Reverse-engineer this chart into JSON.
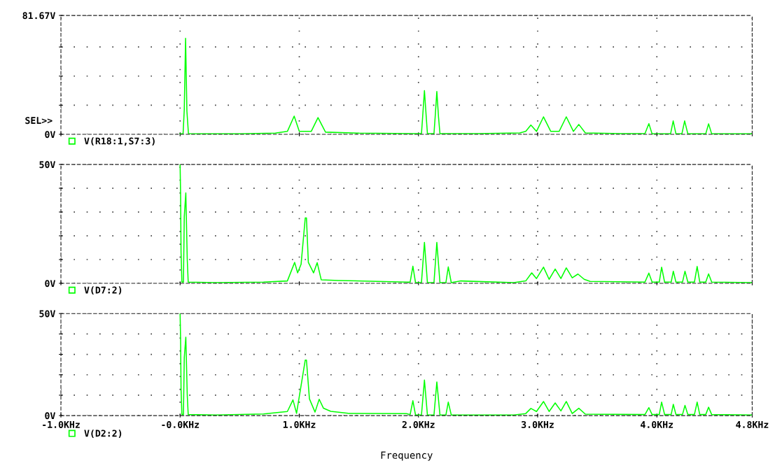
{
  "chart_data": [
    {
      "type": "line",
      "xlim": [
        -1.0,
        4.8
      ],
      "xticks": [
        {
          "value": -1.0,
          "label": null
        },
        {
          "value": 0,
          "label": null
        },
        {
          "value": 1.0,
          "label": null
        },
        {
          "value": 2.0,
          "label": null
        },
        {
          "value": 3.0,
          "label": null
        },
        {
          "value": 4.0,
          "label": null
        },
        {
          "value": 4.8,
          "label": null
        }
      ],
      "ylim": [
        0,
        81.67
      ],
      "yticks": [
        {
          "value": 0,
          "label": "0V"
        },
        {
          "value": 20,
          "label": null
        },
        {
          "value": 40,
          "label": null
        },
        {
          "value": 60,
          "label": null
        },
        {
          "value": 81.67,
          "label": "81.67V"
        }
      ],
      "tick_labels": "y",
      "grid": true,
      "legend": "bottom left",
      "line_style": "solid",
      "annotations": [
        "SEL>>"
      ],
      "series": [
        {
          "name": "V(R18:1,S7:3)",
          "color": "#00ff00",
          "x": [
            0,
            0.025,
            0.035,
            0.046,
            0.057,
            0.07,
            0.2,
            0.5,
            0.8,
            0.9,
            0.957,
            1.0,
            1.1,
            1.157,
            1.22,
            1.5,
            1.95,
            2.025,
            2.035,
            2.05,
            2.065,
            2.075,
            2.13,
            2.14,
            2.154,
            2.168,
            2.18,
            2.5,
            2.85,
            2.9,
            2.943,
            2.99,
            3.049,
            3.11,
            3.18,
            3.24,
            3.3,
            3.345,
            3.4,
            3.7,
            3.9,
            3.933,
            3.96,
            4.115,
            4.137,
            4.16,
            4.21,
            4.233,
            4.26,
            4.41,
            4.434,
            4.46,
            4.8
          ],
          "values": [
            0.3,
            0.5,
            17,
            66,
            16,
            0.5,
            0.4,
            0.4,
            0.8,
            2,
            12.5,
            2,
            2,
            11.5,
            1.5,
            0.8,
            0.5,
            0.5,
            12,
            30,
            12,
            0.5,
            0.5,
            12,
            29.4,
            12,
            0.5,
            0.5,
            1,
            2,
            6.4,
            2,
            12,
            2,
            2,
            12,
            2,
            6.8,
            1,
            0.5,
            0.5,
            7.3,
            0.3,
            0.3,
            9.2,
            0.3,
            0.3,
            9.2,
            0.3,
            0.3,
            7.2,
            0.3,
            0.3
          ]
        }
      ]
    },
    {
      "type": "line",
      "xlim": [
        -1.0,
        4.8
      ],
      "xticks": [
        {
          "value": -1.0,
          "label": null
        },
        {
          "value": 0,
          "label": null
        },
        {
          "value": 1.0,
          "label": null
        },
        {
          "value": 2.0,
          "label": null
        },
        {
          "value": 3.0,
          "label": null
        },
        {
          "value": 4.0,
          "label": null
        },
        {
          "value": 4.8,
          "label": null
        }
      ],
      "ylim": [
        0,
        50
      ],
      "yticks": [
        {
          "value": 0,
          "label": "0V"
        },
        {
          "value": 10,
          "label": null
        },
        {
          "value": 20,
          "label": null
        },
        {
          "value": 30,
          "label": null
        },
        {
          "value": 40,
          "label": null
        },
        {
          "value": 50,
          "label": "50V"
        }
      ],
      "tick_labels": "y",
      "grid": true,
      "legend": "bottom left",
      "line_style": "solid",
      "series": [
        {
          "name": "V(D7:2)",
          "color": "#00ff00",
          "x": [
            0,
            0.004,
            0.008,
            0.015,
            0.028,
            0.035,
            0.048,
            0.06,
            0.068,
            0.3,
            0.7,
            0.9,
            0.961,
            0.986,
            1.015,
            1.05,
            1.06,
            1.076,
            1.12,
            1.15,
            1.184,
            1.33,
            1.9,
            1.93,
            1.953,
            1.975,
            2.025,
            2.05,
            2.075,
            2.13,
            2.154,
            2.18,
            2.23,
            2.25,
            2.275,
            2.356,
            2.8,
            2.9,
            2.95,
            2.99,
            3.049,
            3.096,
            3.147,
            3.195,
            3.24,
            3.29,
            3.338,
            3.39,
            3.44,
            3.9,
            3.933,
            3.96,
            4.02,
            4.04,
            4.065,
            4.12,
            4.138,
            4.16,
            4.215,
            4.236,
            4.26,
            4.315,
            4.338,
            4.36,
            4.41,
            4.434,
            4.46,
            4.8
          ],
          "values": [
            50,
            37.5,
            13,
            0.5,
            0.5,
            28,
            38,
            10,
            0.5,
            0.3,
            0.5,
            1,
            8.8,
            4.4,
            8,
            27.5,
            27.5,
            8.8,
            4.4,
            8.7,
            1.5,
            1.2,
            0.5,
            0.5,
            7.2,
            0.3,
            0.3,
            17.2,
            0.3,
            0.3,
            17.2,
            0.3,
            0.3,
            6.9,
            0.3,
            1,
            0.3,
            1,
            4.4,
            2,
            6.8,
            1.7,
            6,
            2,
            6.5,
            2.3,
            3.9,
            1.7,
            0.8,
            0.5,
            4.3,
            0.5,
            0.5,
            6.8,
            0.5,
            0.5,
            5.1,
            0.5,
            0.5,
            5.1,
            0.5,
            0.5,
            7.1,
            0.5,
            0.5,
            4,
            0.5,
            0.3
          ]
        }
      ]
    },
    {
      "type": "line",
      "xlim": [
        -1.0,
        4.8
      ],
      "xticks": [
        {
          "value": -1.0,
          "label": "-1.0KHz"
        },
        {
          "value": 0,
          "label": "-0.0KHz"
        },
        {
          "value": 1.0,
          "label": "1.0KHz"
        },
        {
          "value": 2.0,
          "label": "2.0KHz"
        },
        {
          "value": 3.0,
          "label": "3.0KHz"
        },
        {
          "value": 4.0,
          "label": "4.0KHz"
        },
        {
          "value": 4.8,
          "label": "4.8KHz"
        }
      ],
      "ylim": [
        0,
        50
      ],
      "yticks": [
        {
          "value": 0,
          "label": "0V"
        },
        {
          "value": 10,
          "label": null
        },
        {
          "value": 20,
          "label": null
        },
        {
          "value": 30,
          "label": null
        },
        {
          "value": 40,
          "label": null
        },
        {
          "value": 50,
          "label": "50V"
        }
      ],
      "xlabel": "Frequency",
      "grid": true,
      "legend": "bottom left",
      "line_style": "solid",
      "series": [
        {
          "name": "V(D2:2)",
          "color": "#00ff00",
          "x": [
            0,
            0.004,
            0.008,
            0.015,
            0.028,
            0.035,
            0.048,
            0.06,
            0.068,
            0.3,
            0.7,
            0.9,
            0.947,
            0.977,
            1.05,
            1.06,
            1.085,
            1.132,
            1.167,
            1.203,
            1.264,
            1.408,
            1.9,
            1.93,
            1.953,
            1.975,
            2.025,
            2.05,
            2.075,
            2.13,
            2.154,
            2.18,
            2.23,
            2.25,
            2.275,
            2.8,
            2.9,
            2.943,
            2.99,
            3.049,
            3.096,
            3.147,
            3.195,
            3.24,
            3.29,
            3.345,
            3.4,
            3.9,
            3.933,
            3.96,
            4.02,
            4.04,
            4.065,
            4.12,
            4.138,
            4.16,
            4.215,
            4.236,
            4.26,
            4.315,
            4.338,
            4.36,
            4.41,
            4.434,
            4.46,
            4.8
          ],
          "values": [
            50,
            37.6,
            13,
            0.5,
            0.5,
            28.4,
            38.4,
            10,
            0.5,
            0.3,
            0.8,
            2,
            7.7,
            1.1,
            27.2,
            27.2,
            8.2,
            1.7,
            8,
            3.6,
            2.1,
            1.1,
            1,
            0.5,
            7.3,
            0.3,
            0.3,
            17.4,
            0.3,
            0.3,
            16.5,
            0.3,
            0.3,
            6.6,
            0.3,
            0.3,
            1,
            3.5,
            2,
            6.9,
            2,
            6.2,
            2.3,
            6.9,
            1,
            3.6,
            0.7,
            0.5,
            3.9,
            0.5,
            0.5,
            6.6,
            0.5,
            0.5,
            5.5,
            0.5,
            0.5,
            5,
            0.5,
            0.5,
            6.6,
            0.5,
            0.5,
            4.1,
            0.5,
            0.3
          ]
        }
      ]
    }
  ]
}
